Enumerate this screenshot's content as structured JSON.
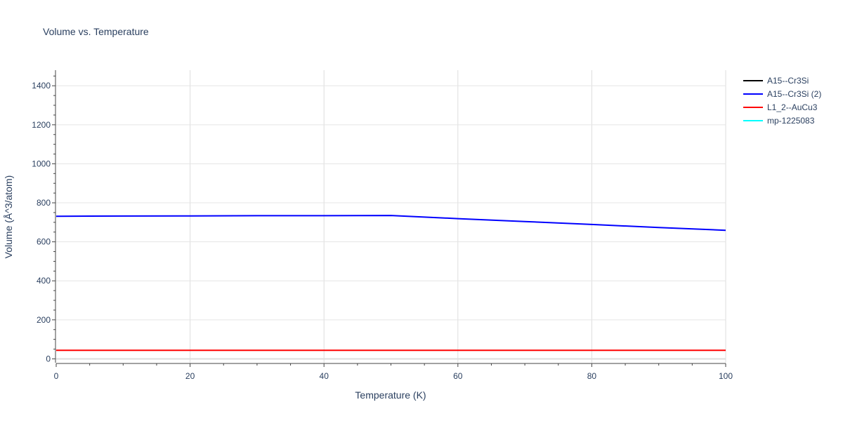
{
  "chart_data": {
    "type": "line",
    "title": "Volume vs. Temperature",
    "xlabel": "Temperature (K)",
    "ylabel": "Volume (Å^3/atom)",
    "xlim": [
      0,
      100
    ],
    "ylim": [
      -20,
      1480
    ],
    "x_ticks": [
      0,
      20,
      40,
      60,
      80,
      100
    ],
    "y_ticks": [
      0,
      200,
      400,
      600,
      800,
      1000,
      1200,
      1400
    ],
    "grid": true,
    "legend_position": "top-right",
    "series": [
      {
        "name": "A15--Cr3Si",
        "color": "#000000",
        "x": [],
        "y": []
      },
      {
        "name": "A15--Cr3Si (2)",
        "color": "#0000ff",
        "x": [
          0,
          10,
          20,
          30,
          40,
          50,
          60,
          70,
          80,
          90,
          100
        ],
        "y": [
          731,
          732,
          733,
          734,
          734,
          735,
          719,
          704,
          689,
          673,
          659
        ]
      },
      {
        "name": "L1_2--AuCu3",
        "color": "#ff0000",
        "x": [
          0,
          10,
          20,
          30,
          40,
          50,
          60,
          70,
          80,
          90,
          100
        ],
        "y": [
          44,
          44,
          44,
          44,
          44,
          44,
          44,
          44,
          44,
          44,
          44
        ]
      },
      {
        "name": "mp-1225083",
        "color": "#00ffff",
        "x": [],
        "y": []
      }
    ]
  }
}
